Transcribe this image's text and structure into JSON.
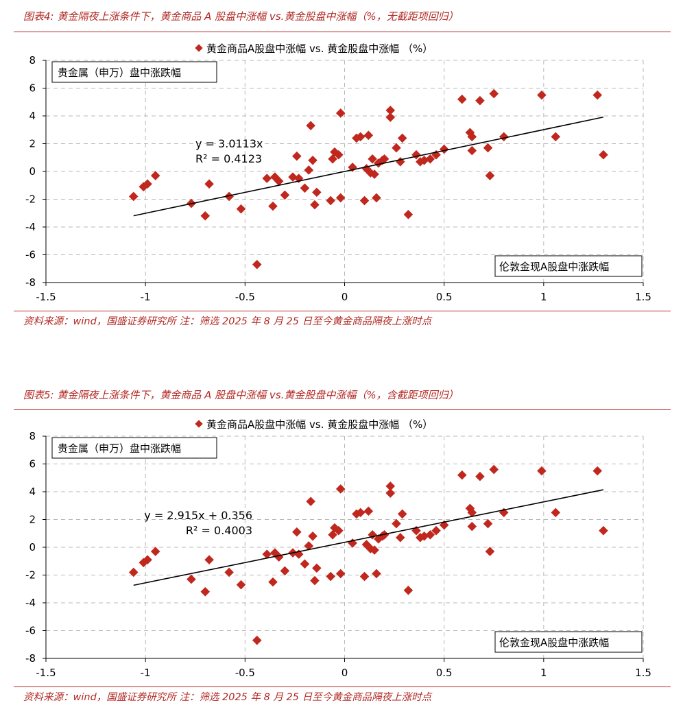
{
  "figure_top": {
    "title": "图表4:  黄金隔夜上涨条件下，黄金商品 A 股盘中涨幅 vs.黄金股盘中涨幅（%，无截距项回归）",
    "source": "资料来源：wind，国盛证券研究所    注：筛选 2025 年 8 月 25 日至今黄金商品隔夜上涨时点"
  },
  "figure_bottom": {
    "title": "图表5:  黄金隔夜上涨条件下，黄金商品 A 股盘中涨幅 vs.黄金股盘中涨幅（%，含截距项回归）",
    "source": "资料来源：wind，国盛证券研究所    注：筛选 2025 年 8 月 25 日至今黄金商品隔夜上涨时点"
  },
  "colors": {
    "accent": "#b22a25",
    "marker": "#c0281e",
    "grid": "#b8b8b8",
    "trend": "#000000"
  },
  "chart_data": [
    {
      "type": "scatter",
      "legend": "黄金商品A股盘中涨幅 vs. 黄金股盘中涨幅 （%）",
      "ylabel_box": "贵金属（申万）盘中涨跌幅",
      "xlabel_box": "伦敦金现A股盘中涨跌幅",
      "xlim": [
        -1.5,
        1.5
      ],
      "ylim": [
        -8,
        8
      ],
      "xticks": [
        "-1.5",
        "-1",
        "-0.5",
        "0",
        "0.5",
        "1",
        "1.5"
      ],
      "yticks": [
        "8",
        "6",
        "4",
        "2",
        "0",
        "-2",
        "-4",
        "-6",
        "-8"
      ],
      "trendline": {
        "slope": 3.0113,
        "intercept": 0,
        "x_range": [
          -1.06,
          1.3
        ]
      },
      "equation": "y = 3.0113x",
      "r2": "R² = 0.4123",
      "x": [
        -1.06,
        -1.01,
        -0.99,
        -0.95,
        -0.77,
        -0.7,
        -0.68,
        -0.58,
        -0.52,
        -0.44,
        -0.39,
        -0.36,
        -0.35,
        -0.33,
        -0.3,
        -0.26,
        -0.24,
        -0.23,
        -0.2,
        -0.18,
        -0.17,
        -0.16,
        -0.15,
        -0.14,
        -0.07,
        -0.06,
        -0.05,
        -0.03,
        -0.02,
        -0.02,
        0.04,
        0.06,
        0.08,
        0.1,
        0.11,
        0.12,
        0.13,
        0.14,
        0.15,
        0.16,
        0.17,
        0.19,
        0.2,
        0.23,
        0.23,
        0.26,
        0.28,
        0.29,
        0.32,
        0.36,
        0.38,
        0.4,
        0.43,
        0.46,
        0.5,
        0.59,
        0.63,
        0.64,
        0.64,
        0.68,
        0.72,
        0.73,
        0.75,
        0.8,
        0.99,
        1.06,
        1.27,
        1.3
      ],
      "y": [
        -1.8,
        -1.1,
        -0.9,
        -0.3,
        -2.3,
        -3.2,
        -0.9,
        -1.8,
        -2.7,
        -6.7,
        -0.5,
        -2.5,
        -0.4,
        -0.7,
        -1.7,
        -0.4,
        1.1,
        -0.5,
        -1.2,
        0.1,
        3.3,
        0.8,
        -2.4,
        -1.5,
        -2.1,
        0.9,
        1.4,
        1.2,
        4.2,
        -1.9,
        0.3,
        2.4,
        2.5,
        -2.1,
        0.2,
        2.6,
        -0.1,
        0.9,
        -0.2,
        -1.9,
        0.6,
        0.8,
        0.9,
        4.4,
        3.9,
        1.7,
        0.7,
        2.4,
        -3.1,
        1.2,
        0.7,
        0.8,
        0.9,
        1.2,
        1.6,
        5.2,
        2.8,
        1.5,
        2.5,
        5.1,
        1.7,
        -0.3,
        5.6,
        2.5,
        5.5,
        2.5,
        5.5,
        1.2
      ]
    },
    {
      "type": "scatter",
      "legend": "黄金商品A股盘中涨幅 vs. 黄金股盘中涨幅 （%）",
      "ylabel_box": "贵金属（申万）盘中涨跌幅",
      "xlabel_box": "伦敦金现A股盘中涨跌幅",
      "xlim": [
        -1.5,
        1.5
      ],
      "ylim": [
        -8,
        8
      ],
      "xticks": [
        "-1.5",
        "-1",
        "-0.5",
        "0",
        "0.5",
        "1",
        "1.5"
      ],
      "yticks": [
        "8",
        "6",
        "4",
        "2",
        "0",
        "-2",
        "-4",
        "-6",
        "-8"
      ],
      "trendline": {
        "slope": 2.915,
        "intercept": 0.356,
        "x_range": [
          -1.06,
          1.3
        ]
      },
      "equation": "y = 2.915x + 0.356",
      "r2": "R² = 0.4003",
      "x": [
        -1.06,
        -1.01,
        -0.99,
        -0.95,
        -0.77,
        -0.7,
        -0.68,
        -0.58,
        -0.52,
        -0.44,
        -0.39,
        -0.36,
        -0.35,
        -0.33,
        -0.3,
        -0.26,
        -0.24,
        -0.23,
        -0.2,
        -0.18,
        -0.17,
        -0.16,
        -0.15,
        -0.14,
        -0.07,
        -0.06,
        -0.05,
        -0.03,
        -0.02,
        -0.02,
        0.04,
        0.06,
        0.08,
        0.1,
        0.11,
        0.12,
        0.13,
        0.14,
        0.15,
        0.16,
        0.17,
        0.19,
        0.2,
        0.23,
        0.23,
        0.26,
        0.28,
        0.29,
        0.32,
        0.36,
        0.38,
        0.4,
        0.43,
        0.46,
        0.5,
        0.59,
        0.63,
        0.64,
        0.64,
        0.68,
        0.72,
        0.73,
        0.75,
        0.8,
        0.99,
        1.06,
        1.27,
        1.3
      ],
      "y": [
        -1.8,
        -1.1,
        -0.9,
        -0.3,
        -2.3,
        -3.2,
        -0.9,
        -1.8,
        -2.7,
        -6.7,
        -0.5,
        -2.5,
        -0.4,
        -0.7,
        -1.7,
        -0.4,
        1.1,
        -0.5,
        -1.2,
        0.1,
        3.3,
        0.8,
        -2.4,
        -1.5,
        -2.1,
        0.9,
        1.4,
        1.2,
        4.2,
        -1.9,
        0.3,
        2.4,
        2.5,
        -2.1,
        0.2,
        2.6,
        -0.1,
        0.9,
        -0.2,
        -1.9,
        0.6,
        0.8,
        0.9,
        4.4,
        3.9,
        1.7,
        0.7,
        2.4,
        -3.1,
        1.2,
        0.7,
        0.8,
        0.9,
        1.2,
        1.6,
        5.2,
        2.8,
        1.5,
        2.5,
        5.1,
        1.7,
        -0.3,
        5.6,
        2.5,
        5.5,
        2.5,
        5.5,
        1.2
      ]
    }
  ]
}
